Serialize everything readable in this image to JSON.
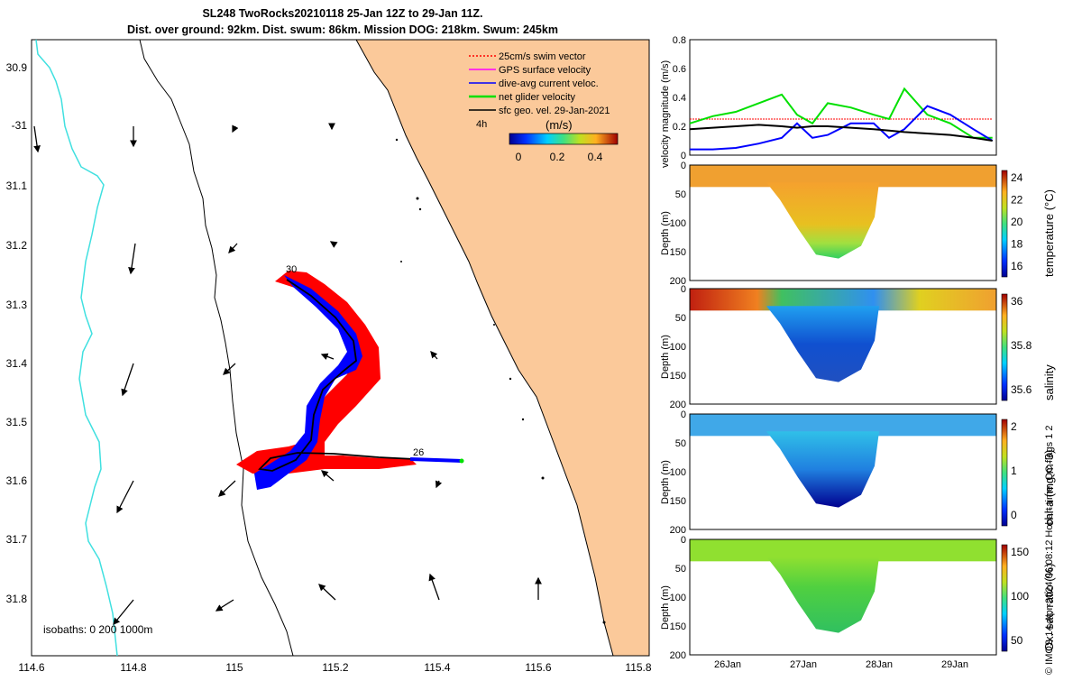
{
  "title": {
    "line1": "SL248 TwoRocks20210118 25-Jan 12Z to 29-Jan 11Z.",
    "line2": "Dist. over ground: 92km. Dist. swum: 86km. Mission DOG: 218km. Swum: 245km"
  },
  "map": {
    "lon_ticks": [
      "114.6",
      "114.8",
      "115",
      "115.2",
      "115.4",
      "115.6",
      "115.8"
    ],
    "lat_ticks": [
      "30.9",
      "-31",
      "31.1",
      "31.2",
      "31.3",
      "31.4",
      "31.5",
      "31.6",
      "31.7",
      "31.8"
    ],
    "legend": [
      {
        "label": "25cm/s swim vector",
        "color": "#ff0000"
      },
      {
        "label": "GPS surface velocity",
        "color": "#ff00ff"
      },
      {
        "label": "dive-avg current veloc.",
        "color": "#0000ff"
      },
      {
        "label": "net glider velocity",
        "color": "#00e000"
      },
      {
        "label": "sfc geo. vel. 29-Jan-2021",
        "color": "#000000"
      }
    ],
    "colorbar": {
      "unit_label": "(m/s)",
      "ticks": [
        "0",
        "0.2",
        "0.4"
      ],
      "side_label": "4h"
    },
    "isobaths_label": "isobaths: 0   200  1000m",
    "track_labels": [
      "30",
      "26"
    ],
    "land_color": "#fbc99a",
    "coast_color": "#40e0e0"
  },
  "chart_data": [
    {
      "type": "line",
      "ylabel": "velocity magnitude (m/s)",
      "ylim": [
        0,
        0.8
      ],
      "yticks": [
        "0",
        "0.2",
        "0.4",
        "0.6",
        "0.8"
      ],
      "x": [
        25.5,
        25.8,
        26.1,
        26.4,
        26.7,
        26.9,
        27.1,
        27.3,
        27.6,
        27.9,
        28.1,
        28.3,
        28.6,
        28.9,
        29.2,
        29.45
      ],
      "series": [
        {
          "values": [
            0.25,
            0.25,
            0.25,
            0.25,
            0.25,
            0.25,
            0.25,
            0.25,
            0.25,
            0.25,
            0.25,
            0.25,
            0.25,
            0.25,
            0.25,
            0.25
          ],
          "color": "#ff0000"
        },
        {
          "values": [
            0.22,
            0.27,
            0.3,
            0.36,
            0.42,
            0.28,
            0.22,
            0.36,
            0.33,
            0.28,
            0.25,
            0.46,
            0.28,
            0.22,
            0.12,
            0.12
          ],
          "color": "#00e000"
        },
        {
          "values": [
            0.04,
            0.04,
            0.05,
            0.08,
            0.12,
            0.22,
            0.12,
            0.14,
            0.22,
            0.22,
            0.12,
            0.18,
            0.34,
            0.28,
            0.18,
            0.1
          ],
          "color": "#0000ff"
        },
        {
          "values": [
            0.18,
            0.19,
            0.2,
            0.21,
            0.2,
            0.19,
            0.2,
            0.2,
            0.19,
            0.18,
            0.17,
            0.16,
            0.15,
            0.14,
            0.12,
            0.1
          ],
          "color": "#000000"
        }
      ]
    },
    {
      "type": "heatmap",
      "ylabel": "Depth (m)",
      "cbar_label": "temperature (°C)",
      "cbar_ticks": [
        "24",
        "22",
        "20",
        "18",
        "16"
      ],
      "ylim": [
        200,
        0
      ],
      "yticks": [
        "0",
        "50",
        "100",
        "150",
        "200"
      ]
    },
    {
      "type": "heatmap",
      "ylabel": "Depth (m)",
      "cbar_label": "salinity",
      "cbar_ticks": [
        "36",
        "35.8",
        "35.6"
      ],
      "ylim": [
        200,
        0
      ],
      "yticks": [
        "0",
        "50",
        "100",
        "150",
        "200"
      ]
    },
    {
      "type": "heatmap",
      "ylabel": "Depth (m)",
      "cbar_label": "chl-a (mg m-3)",
      "cbar_ticks": [
        "2",
        "1",
        "0"
      ],
      "ylim": [
        200,
        0
      ],
      "yticks": [
        "0",
        "50",
        "100",
        "150",
        "200"
      ]
    },
    {
      "type": "heatmap",
      "ylabel": "Depth (m)",
      "cbar_label": "Ox. sat. ratio (%)",
      "cbar_ticks": [
        "150",
        "100",
        "50"
      ],
      "ylim": [
        200,
        0
      ],
      "yticks": [
        "0",
        "50",
        "100",
        "150",
        "200"
      ],
      "xticks": [
        "26Jan",
        "27Jan",
        "28Jan",
        "29Jan"
      ]
    }
  ],
  "side_label": "© IMOS 14-Apr-2024 06:08:12 Hobart time. QC flags 1  2"
}
